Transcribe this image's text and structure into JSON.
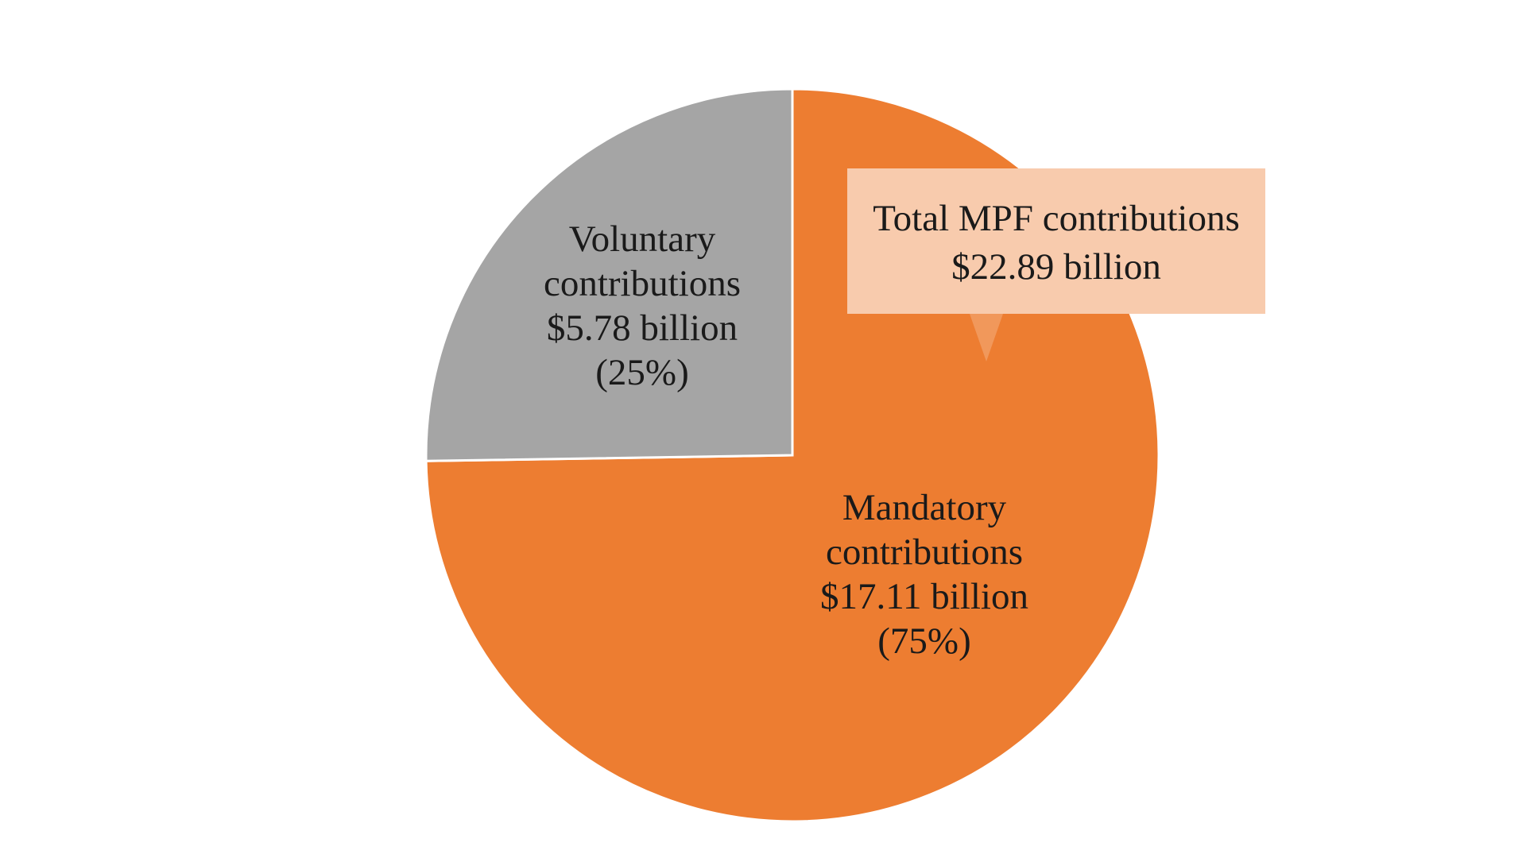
{
  "chart_data": {
    "type": "pie",
    "title": "",
    "start_angle_deg": 0,
    "direction": "clockwise",
    "slices": [
      {
        "name": "Mandatory contributions",
        "value": 17.11,
        "percent": 75,
        "color": "#ED7D31",
        "label_lines": [
          "Mandatory",
          "contributions",
          "$17.11 billion",
          "(75%)"
        ]
      },
      {
        "name": "Voluntary contributions",
        "value": 5.78,
        "percent": 25,
        "color": "#A5A5A5",
        "label_lines": [
          "Voluntary",
          "contributions",
          "$5.78 billion",
          "(25%)"
        ]
      }
    ],
    "callout": {
      "lines": [
        "Total MPF contributions",
        "$22.89 billion"
      ],
      "total": 22.89,
      "background_color": "#F8CBAD"
    },
    "unit": "billion"
  }
}
